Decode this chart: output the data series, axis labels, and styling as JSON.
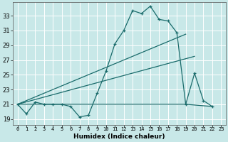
{
  "xlabel": "Humidex (Indice chaleur)",
  "xlim": [
    -0.5,
    23.5
  ],
  "ylim": [
    18.2,
    34.8
  ],
  "yticks": [
    19,
    21,
    23,
    25,
    27,
    29,
    31,
    33
  ],
  "xticks": [
    0,
    1,
    2,
    3,
    4,
    5,
    6,
    7,
    8,
    9,
    10,
    11,
    12,
    13,
    14,
    15,
    16,
    17,
    18,
    19,
    20,
    21,
    22,
    23
  ],
  "bg_color": "#c8e8e8",
  "line_color": "#1a6b6b",
  "main_line_x": [
    0,
    1,
    2,
    3,
    4,
    5,
    6,
    7,
    8,
    9,
    10,
    11,
    12,
    13,
    14,
    15,
    16,
    17,
    18,
    19,
    20,
    21,
    22
  ],
  "main_line_y": [
    21.0,
    19.7,
    21.3,
    21.0,
    21.0,
    21.0,
    20.7,
    19.3,
    19.5,
    22.5,
    25.5,
    29.2,
    31.0,
    33.7,
    33.3,
    34.3,
    32.5,
    32.3,
    30.7,
    21.0,
    25.2,
    21.5,
    20.7
  ],
  "trend1_x": [
    0,
    19
  ],
  "trend1_y": [
    21.0,
    30.5
  ],
  "trend2_x": [
    0,
    20
  ],
  "trend2_y": [
    21.0,
    27.5
  ],
  "flat_line_x": [
    0,
    19,
    22
  ],
  "flat_line_y": [
    21.0,
    21.0,
    20.7
  ],
  "xticklabels": [
    "0",
    "1",
    "2",
    "3",
    "4",
    "5",
    "6",
    "7",
    "8",
    "9",
    "10",
    "11",
    "12",
    "13",
    "14",
    "15",
    "16",
    "17",
    "18",
    "19",
    "20",
    "21",
    "22",
    "23"
  ]
}
